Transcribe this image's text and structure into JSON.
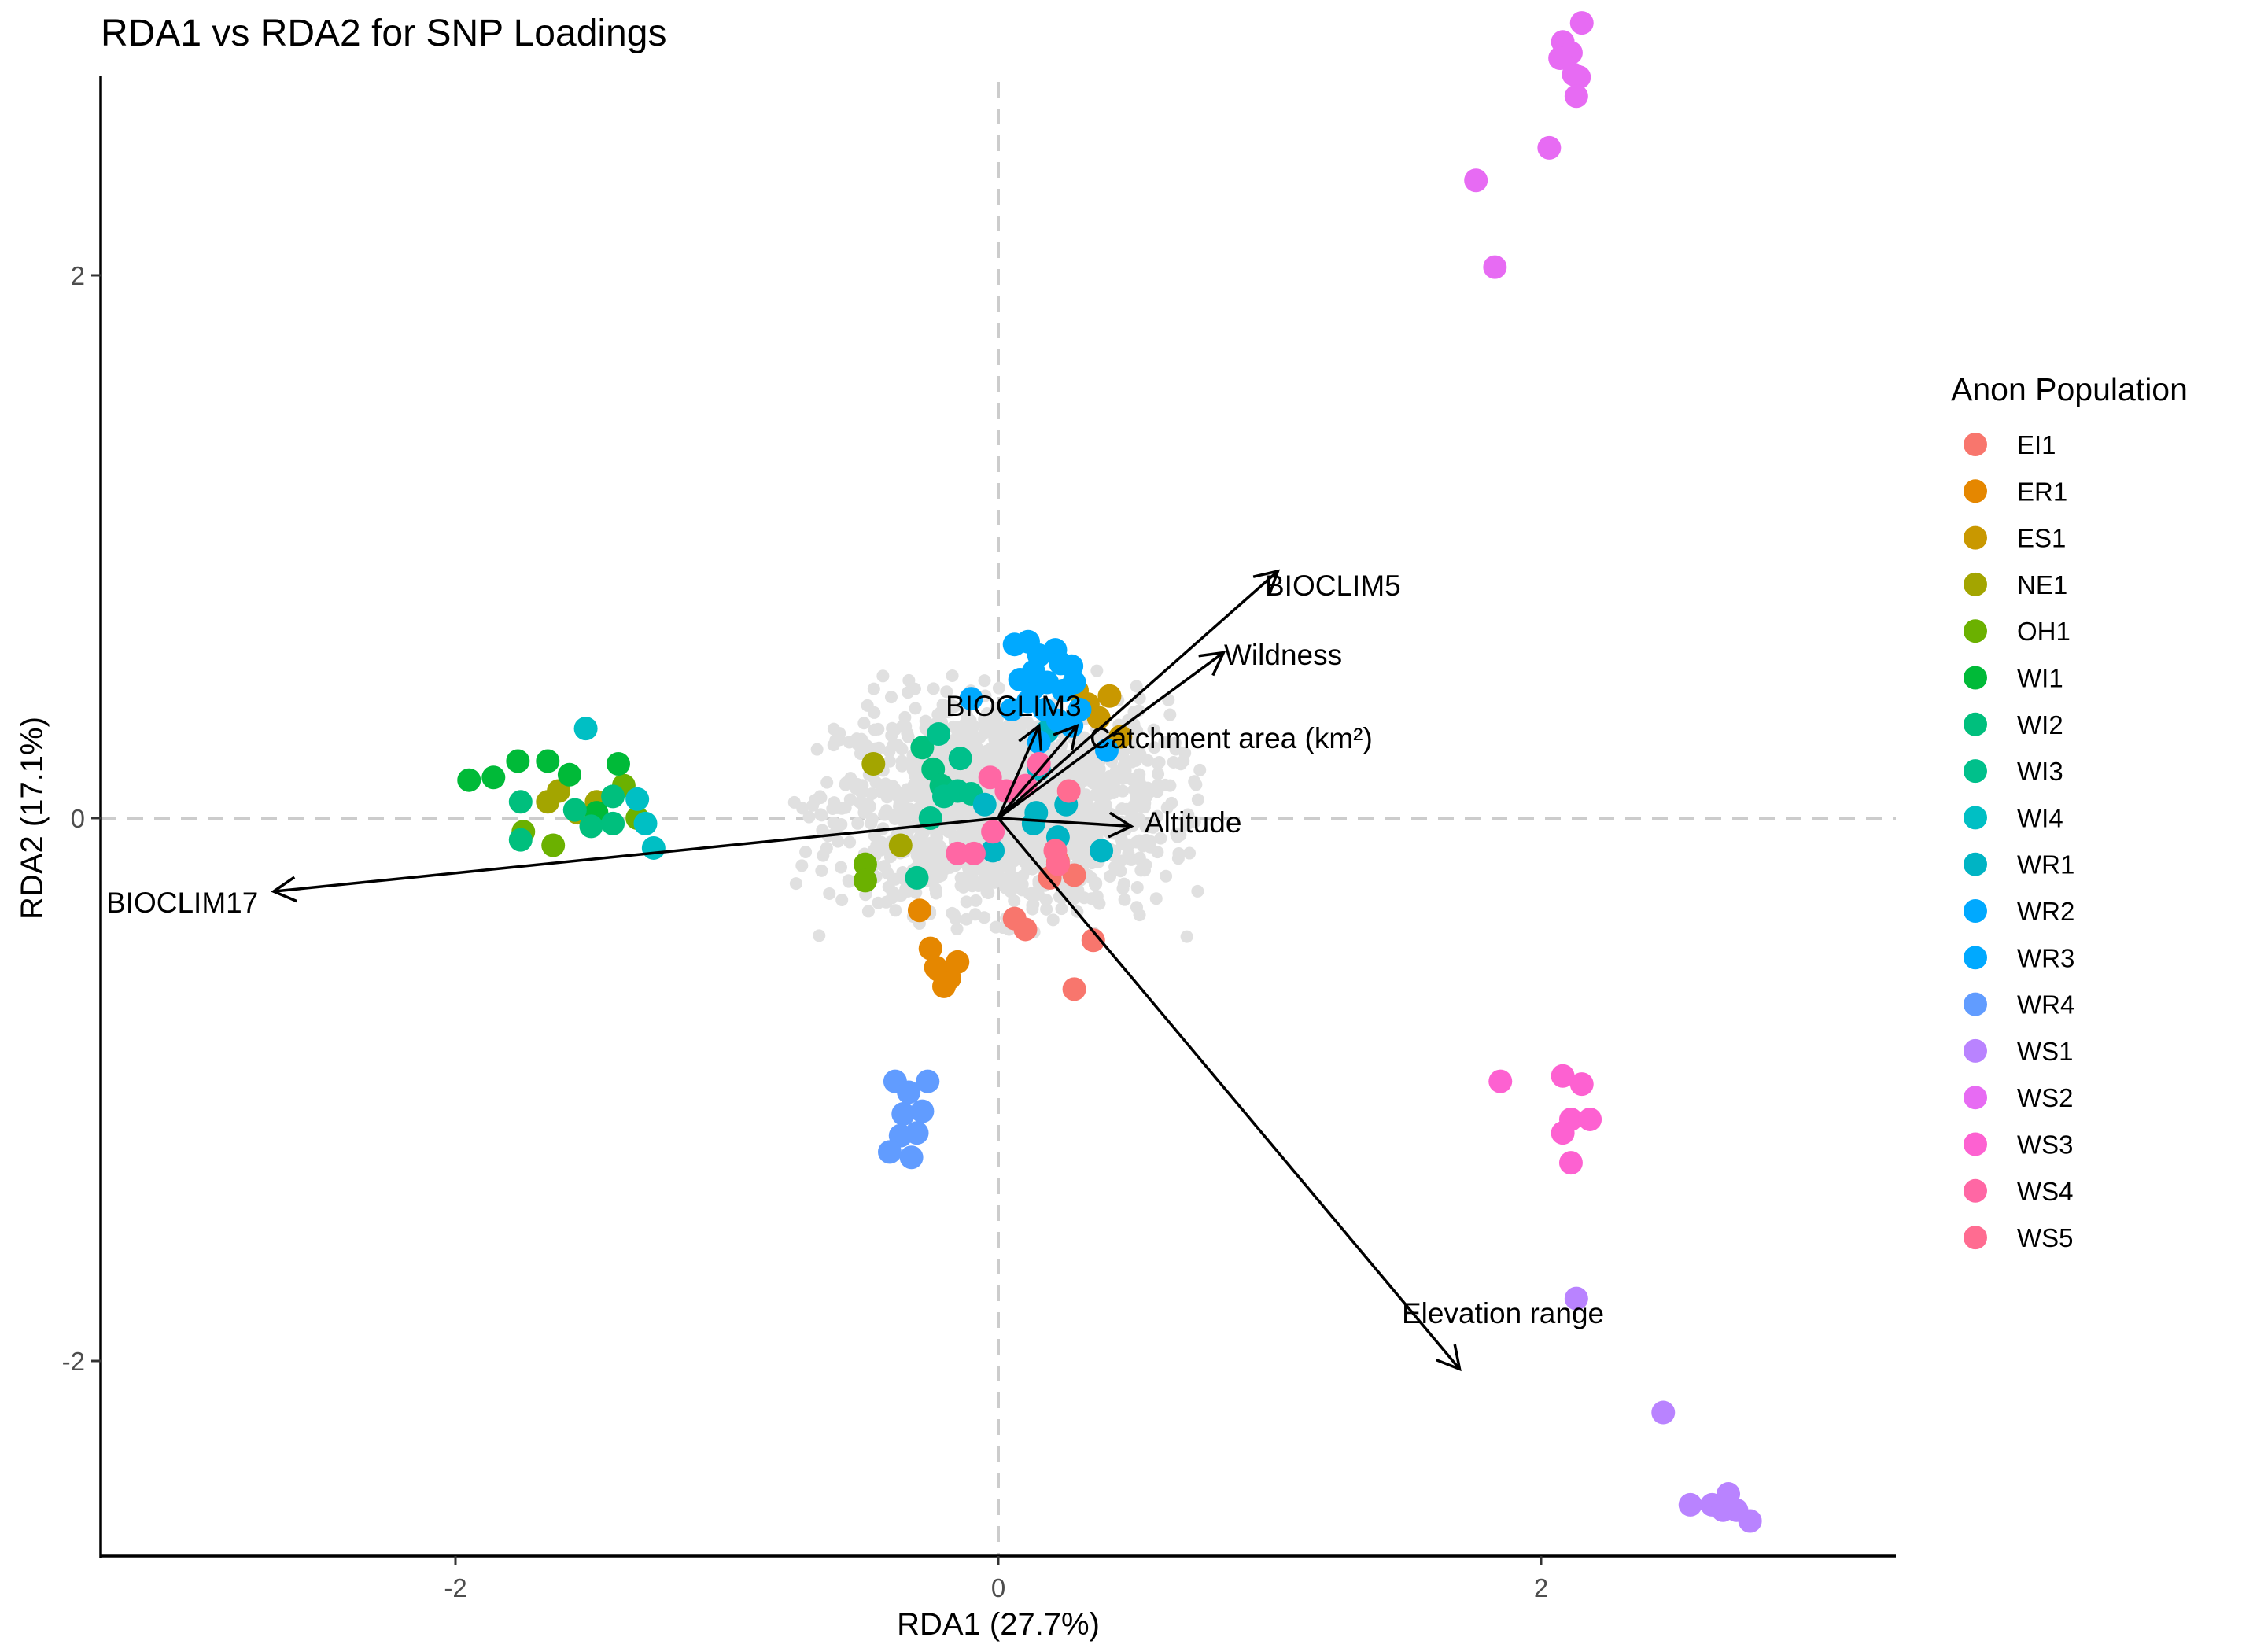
{
  "chart_data": {
    "type": "scatter",
    "title": "RDA1 vs RDA2 for SNP Loadings",
    "xlabel": "RDA1 (27.7%)",
    "ylabel": "RDA2 (17.1%)",
    "xlim": [
      -3.3,
      3.3
    ],
    "ylim": [
      -3.27,
      3.27
    ],
    "x_ticks": [
      "-2",
      "0",
      "2"
    ],
    "y_ticks": [
      "2",
      "0",
      "-2"
    ],
    "x_tick_values": [
      -2,
      0,
      2
    ],
    "y_tick_values": [
      2,
      0,
      -2
    ],
    "reference_lines": {
      "x": 0,
      "y": 0,
      "style": "dashed",
      "color": "#cccccc"
    },
    "legend": {
      "title": "Anon Population",
      "position": "right"
    },
    "snp_cloud": {
      "color": "#e0e0e0",
      "center": [
        0.02,
        0.05
      ],
      "spread": [
        0.3,
        0.19
      ],
      "count": 1500
    },
    "series": [
      {
        "name": "EI1",
        "color": "#F8766D",
        "points": [
          [
            0.06,
            -0.37
          ],
          [
            0.1,
            -0.41
          ],
          [
            0.28,
            -0.21
          ],
          [
            0.22,
            -0.17
          ],
          [
            0.19,
            -0.22
          ],
          [
            0.35,
            -0.45
          ],
          [
            0.28,
            -0.63
          ],
          [
            0.22,
            -0.16
          ]
        ]
      },
      {
        "name": "ER1",
        "color": "#E58700",
        "points": [
          [
            -0.29,
            -0.34
          ],
          [
            -0.25,
            -0.48
          ],
          [
            -0.22,
            -0.56
          ],
          [
            -0.18,
            -0.59
          ],
          [
            -0.15,
            -0.53
          ],
          [
            -0.2,
            -0.62
          ],
          [
            -0.23,
            -0.55
          ]
        ]
      },
      {
        "name": "ES1",
        "color": "#C99800",
        "points": [
          [
            0.33,
            0.42
          ],
          [
            0.41,
            0.45
          ],
          [
            0.45,
            0.3
          ],
          [
            0.37,
            0.37
          ],
          [
            0.29,
            0.47
          ]
        ]
      },
      {
        "name": "NE1",
        "color": "#A3A500",
        "points": [
          [
            -0.46,
            0.2
          ],
          [
            -0.36,
            -0.1
          ],
          [
            -1.66,
            0.06
          ],
          [
            -1.62,
            0.1
          ],
          [
            -1.55,
            0.02
          ],
          [
            -1.48,
            0.06
          ]
        ]
      },
      {
        "name": "OH1",
        "color": "#6BB100",
        "points": [
          [
            -0.49,
            -0.17
          ],
          [
            -0.49,
            -0.23
          ],
          [
            -1.75,
            -0.05
          ],
          [
            -1.64,
            -0.1
          ],
          [
            -1.38,
            0.12
          ],
          [
            -1.33,
            0.0
          ]
        ]
      },
      {
        "name": "WI1",
        "color": "#00BA38",
        "points": [
          [
            -1.95,
            0.14
          ],
          [
            -1.86,
            0.15
          ],
          [
            -1.77,
            0.21
          ],
          [
            -1.66,
            0.21
          ],
          [
            -1.58,
            0.16
          ],
          [
            -1.4,
            0.2
          ],
          [
            -1.48,
            0.02
          ]
        ]
      },
      {
        "name": "WI2",
        "color": "#00BF7D",
        "points": [
          [
            -1.76,
            0.06
          ],
          [
            -1.76,
            -0.08
          ],
          [
            -1.56,
            0.03
          ],
          [
            -1.5,
            -0.03
          ],
          [
            -1.42,
            0.08
          ],
          [
            -1.42,
            -0.02
          ],
          [
            -0.28,
            0.26
          ],
          [
            -0.24,
            0.18
          ],
          [
            -0.21,
            0.12
          ]
        ]
      },
      {
        "name": "WI3",
        "color": "#00C08B",
        "points": [
          [
            -0.22,
            0.31
          ],
          [
            -0.3,
            -0.22
          ],
          [
            -0.25,
            0.0
          ],
          [
            -0.2,
            0.08
          ],
          [
            -0.15,
            0.1
          ],
          [
            -0.1,
            0.09
          ],
          [
            -0.14,
            0.22
          ]
        ]
      },
      {
        "name": "WI4",
        "color": "#00BFC4",
        "points": [
          [
            -1.52,
            0.33
          ],
          [
            -1.27,
            -0.11
          ],
          [
            -1.33,
            0.07
          ],
          [
            -1.3,
            -0.02
          ]
        ]
      },
      {
        "name": "WR1",
        "color": "#00B4C4",
        "points": [
          [
            0.15,
            0.18
          ],
          [
            0.18,
            0.32
          ],
          [
            0.14,
            0.02
          ],
          [
            0.25,
            0.05
          ],
          [
            -0.05,
            0.05
          ],
          [
            0.22,
            -0.07
          ],
          [
            0.38,
            -0.12
          ],
          [
            -0.02,
            -0.12
          ],
          [
            0.13,
            -0.02
          ]
        ]
      },
      {
        "name": "WR2",
        "color": "#00A9FF",
        "points": [
          [
            0.06,
            0.64
          ],
          [
            0.11,
            0.65
          ],
          [
            0.15,
            0.6
          ],
          [
            0.21,
            0.62
          ],
          [
            0.23,
            0.57
          ],
          [
            0.27,
            0.56
          ],
          [
            0.08,
            0.51
          ],
          [
            0.13,
            0.48
          ],
          [
            0.18,
            0.5
          ],
          [
            0.24,
            0.47
          ],
          [
            0.28,
            0.5
          ],
          [
            0.11,
            0.43
          ],
          [
            0.17,
            0.4
          ],
          [
            0.22,
            0.36
          ],
          [
            0.27,
            0.34
          ],
          [
            0.15,
            0.28
          ],
          [
            0.4,
            0.25
          ],
          [
            0.13,
            0.54
          ]
        ]
      },
      {
        "name": "WR3",
        "color": "#00A9FF",
        "points": [
          [
            -0.1,
            0.44
          ],
          [
            0.05,
            0.4
          ],
          [
            0.3,
            0.4
          ]
        ]
      },
      {
        "name": "WR4",
        "color": "#619CFF",
        "points": [
          [
            -0.38,
            -0.97
          ],
          [
            -0.33,
            -1.01
          ],
          [
            -0.26,
            -0.97
          ],
          [
            -0.35,
            -1.09
          ],
          [
            -0.28,
            -1.08
          ],
          [
            -0.36,
            -1.17
          ],
          [
            -0.3,
            -1.16
          ],
          [
            -0.4,
            -1.23
          ],
          [
            -0.32,
            -1.25
          ]
        ]
      },
      {
        "name": "WS1",
        "color": "#B983FF",
        "points": [
          [
            2.13,
            -1.77
          ],
          [
            2.45,
            -2.19
          ],
          [
            2.55,
            -2.53
          ],
          [
            2.63,
            -2.53
          ],
          [
            2.67,
            -2.55
          ],
          [
            2.69,
            -2.49
          ],
          [
            2.72,
            -2.55
          ],
          [
            2.77,
            -2.59
          ]
        ]
      },
      {
        "name": "WS2",
        "color": "#E76BF3",
        "points": [
          [
            2.15,
            2.93
          ],
          [
            2.08,
            2.86
          ],
          [
            2.11,
            2.82
          ],
          [
            2.07,
            2.8
          ],
          [
            2.12,
            2.74
          ],
          [
            2.14,
            2.73
          ],
          [
            2.13,
            2.66
          ],
          [
            2.03,
            2.47
          ],
          [
            1.76,
            2.35
          ],
          [
            1.83,
            2.03
          ]
        ]
      },
      {
        "name": "WS3",
        "color": "#FD61D1",
        "points": [
          [
            1.85,
            -0.97
          ],
          [
            2.08,
            -0.95
          ],
          [
            2.15,
            -0.98
          ],
          [
            2.11,
            -1.11
          ],
          [
            2.18,
            -1.11
          ],
          [
            2.08,
            -1.16
          ],
          [
            2.11,
            -1.27
          ]
        ]
      },
      {
        "name": "WS4",
        "color": "#FF67A4",
        "points": [
          [
            -0.03,
            0.15
          ],
          [
            0.03,
            0.1
          ],
          [
            -0.02,
            -0.05
          ],
          [
            -0.15,
            -0.13
          ],
          [
            -0.09,
            -0.13
          ],
          [
            0.15,
            0.2
          ],
          [
            0.1,
            0.12
          ]
        ]
      },
      {
        "name": "WS5",
        "color": "#FF6C91",
        "points": [
          [
            0.22,
            -0.17
          ],
          [
            0.21,
            -0.12
          ],
          [
            0.26,
            0.1
          ]
        ]
      }
    ],
    "biplot_arrows": [
      {
        "label": "BIOCLIM5",
        "x": 1.03,
        "y": 0.91
      },
      {
        "label": "Wildness",
        "x": 0.83,
        "y": 0.61
      },
      {
        "label": "BIOCLIM3",
        "x": 0.15,
        "y": 0.34
      },
      {
        "label": "Catchment area (km²)",
        "x": 0.29,
        "y": 0.34
      },
      {
        "label": "Altitude",
        "x": 0.49,
        "y": -0.03
      },
      {
        "label": "BIOCLIM17",
        "x": -2.67,
        "y": -0.27
      },
      {
        "label": "Elevation range",
        "x": 1.7,
        "y": -2.03
      }
    ]
  }
}
